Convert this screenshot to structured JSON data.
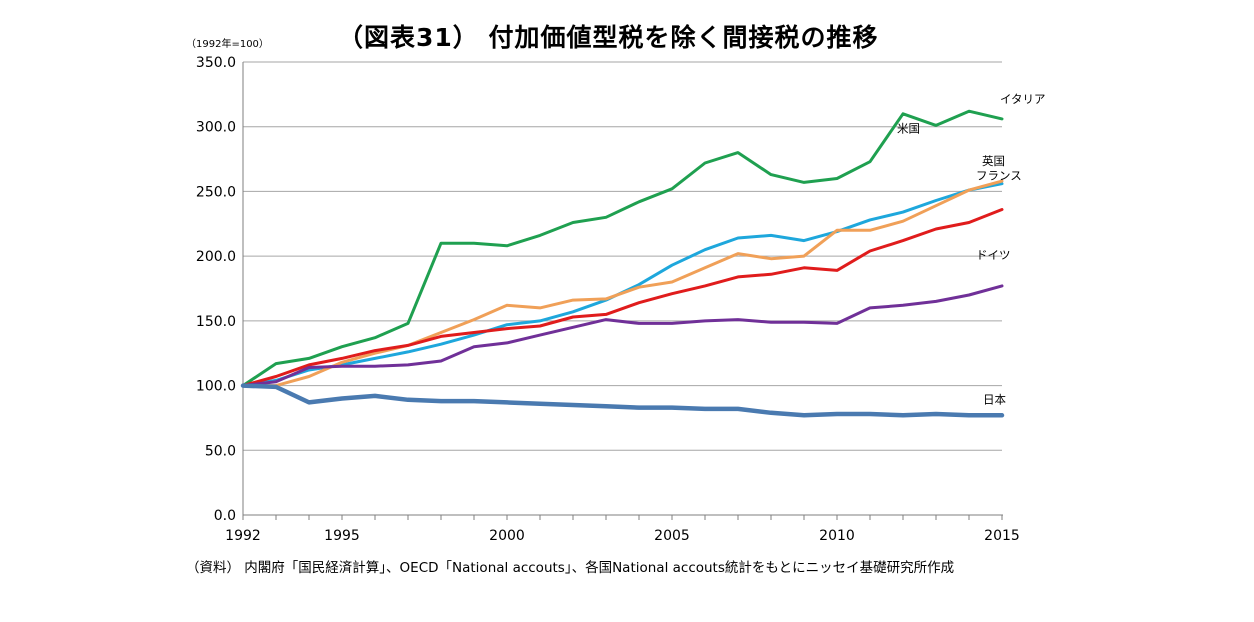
{
  "page": {
    "title": "（図表31） 付加価値型税を除く間接税の推移",
    "unit_note": "（1992年=100）",
    "source_note": "（資料） 内閣府「国民経済計算」、OECD「National accouts」、各国National accouts統計をもとにニッセイ基礎研究所作成"
  },
  "chart_data": {
    "type": "line",
    "title": "（図表31） 付加価値型税を除く間接税の推移",
    "xlabel": "",
    "ylabel": "",
    "x": [
      1992,
      1993,
      1994,
      1995,
      1996,
      1997,
      1998,
      1999,
      2000,
      2001,
      2002,
      2003,
      2004,
      2005,
      2006,
      2007,
      2008,
      2009,
      2010,
      2011,
      2012,
      2013,
      2014,
      2015
    ],
    "xlim": [
      1992,
      2015
    ],
    "ylim": [
      0,
      350
    ],
    "x_tick_labels": [
      "1992",
      "1995",
      "2000",
      "2005",
      "2010",
      "2015"
    ],
    "y_tick_labels": [
      "0.0",
      "50.0",
      "100.0",
      "150.0",
      "200.0",
      "250.0",
      "300.0",
      "350.0"
    ],
    "grid": "horizontal",
    "legend": "inline labels at line ends",
    "series": [
      {
        "name": "イタリア",
        "color": "#1fa050",
        "values": [
          100,
          117,
          121,
          130,
          137,
          148,
          210,
          210,
          208,
          216,
          226,
          230,
          242,
          252,
          272,
          280,
          263,
          257,
          260,
          273,
          310,
          301,
          312,
          306
        ]
      },
      {
        "name": "米国",
        "color": "#1ea7dc",
        "values": [
          100,
          104,
          112,
          116,
          121,
          126,
          132,
          139,
          147,
          150,
          157,
          166,
          178,
          193,
          205,
          214,
          216,
          212,
          219,
          228,
          234,
          243,
          251,
          256
        ]
      },
      {
        "name": "英国",
        "color": "#f0a058",
        "values": [
          100,
          100,
          107,
          118,
          125,
          131,
          141,
          151,
          162,
          160,
          166,
          167,
          176,
          180,
          191,
          202,
          198,
          200,
          220,
          220,
          227,
          239,
          251,
          258
        ]
      },
      {
        "name": "フランス",
        "color": "#e01c1c",
        "values": [
          100,
          107,
          116,
          121,
          127,
          131,
          138,
          141,
          144,
          146,
          153,
          155,
          164,
          171,
          177,
          184,
          186,
          191,
          189,
          204,
          212,
          221,
          226,
          236
        ]
      },
      {
        "name": "ドイツ",
        "color": "#703098",
        "values": [
          100,
          103,
          114,
          115,
          115,
          116,
          119,
          130,
          133,
          139,
          145,
          151,
          148,
          148,
          150,
          151,
          149,
          149,
          148,
          160,
          162,
          165,
          170,
          177
        ]
      },
      {
        "name": "日本",
        "color": "#4a7ab0",
        "values": [
          100,
          99,
          87,
          90,
          92,
          89,
          88,
          88,
          87,
          86,
          85,
          84,
          83,
          83,
          82,
          82,
          79,
          77,
          78,
          78,
          77,
          78,
          77,
          77
        ]
      }
    ]
  }
}
